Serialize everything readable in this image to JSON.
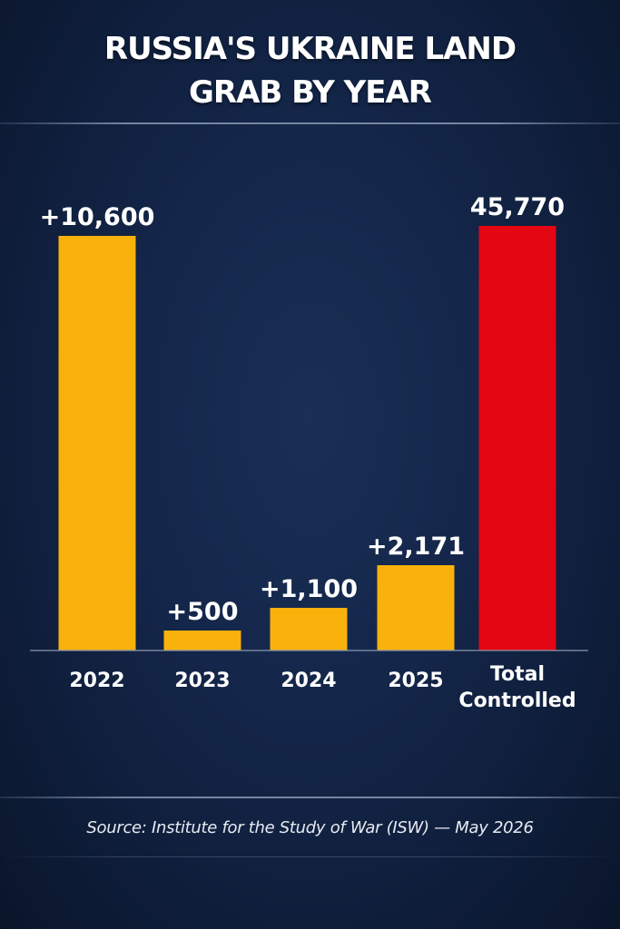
{
  "title": {
    "line1": "RUSSIA'S UKRAINE LAND",
    "line2": "GRAB BY YEAR"
  },
  "source": "Source: Institute for the Study of War (ISW) — May 2026",
  "colors": {
    "year_bar": "#f9b10c",
    "total_bar": "#e30613",
    "background": "#14264a"
  },
  "chart_data": {
    "type": "bar",
    "title": "RUSSIA'S UKRAINE LAND GRAB BY YEAR",
    "xlabel": "",
    "ylabel": "",
    "grid": false,
    "legend": "none",
    "categories": [
      "2022",
      "2023",
      "2024",
      "2025",
      "Total Controlled"
    ],
    "values": [
      10600,
      500,
      1100,
      2171,
      45770
    ],
    "data_labels": [
      "+10,600",
      "+500",
      "+1,100",
      "+2,171",
      "45,770"
    ],
    "bar_colors": [
      "#f9b10c",
      "#f9b10c",
      "#f9b10c",
      "#f9b10c",
      "#e30613"
    ],
    "note": ""
  }
}
